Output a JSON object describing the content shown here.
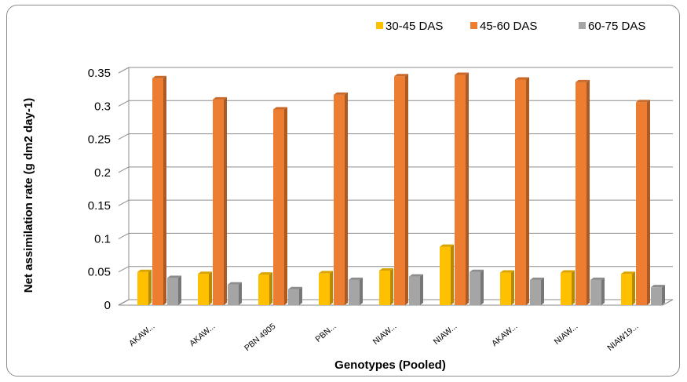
{
  "chart_data": {
    "type": "bar",
    "title": "",
    "xlabel": "Genotypes (Pooled)",
    "ylabel": "Net assimilation rate (g dm2 day-1)",
    "ylim": [
      0,
      0.35
    ],
    "yticks": [
      "0",
      "0.05",
      "0.1",
      "0.15",
      "0.2",
      "0.25",
      "0.3",
      "0.35"
    ],
    "ytick_values": [
      0,
      0.05,
      0.1,
      0.15,
      0.2,
      0.25,
      0.3,
      0.35
    ],
    "grid": true,
    "legend_position": "top-right",
    "categories": [
      "AKAW...",
      "AKAW...",
      "PBN 4905",
      "PBN...",
      "NIAW...",
      "NIAW...",
      "AKAW...",
      "NIAW...",
      "NIAW19..."
    ],
    "series": [
      {
        "name": "30-45 DAS",
        "color": "#ffc000",
        "values": [
          0.05,
          0.047,
          0.046,
          0.048,
          0.052,
          0.088,
          0.049,
          0.049,
          0.047
        ]
      },
      {
        "name": "45-60 DAS",
        "color": "#ed7d31",
        "values": [
          0.342,
          0.31,
          0.295,
          0.317,
          0.345,
          0.347,
          0.34,
          0.336,
          0.306
        ]
      },
      {
        "name": "60-75 DAS",
        "color": "#a5a5a5",
        "values": [
          0.041,
          0.031,
          0.024,
          0.038,
          0.043,
          0.05,
          0.038,
          0.038,
          0.027
        ]
      }
    ]
  }
}
